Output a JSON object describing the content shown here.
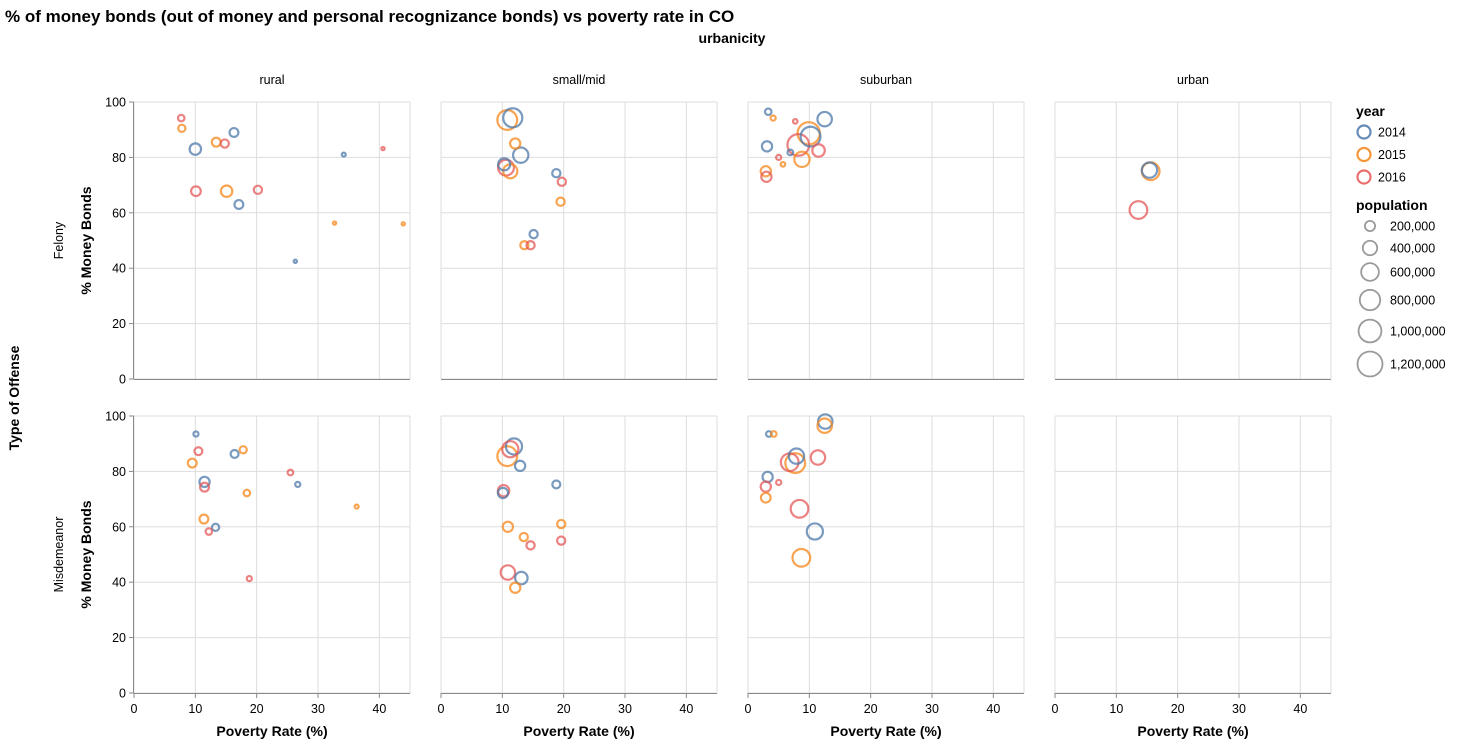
{
  "chart_data": {
    "type": "scatter",
    "title": "% of money bonds (out of money and personal recognizance bonds) vs poverty rate in CO",
    "column_facet_title": "urbanicity",
    "row_facet_title": "Type of Offense",
    "xlabel": "Poverty Rate (%)",
    "ylabel": "% Money Bonds",
    "xlim": [
      0,
      45
    ],
    "ylim": [
      0,
      100
    ],
    "x_ticks": [
      0,
      10,
      20,
      30,
      40
    ],
    "y_ticks": [
      0,
      20,
      40,
      60,
      80,
      100
    ],
    "grid": true,
    "columns": [
      "rural",
      "small/mid",
      "suburban",
      "urban"
    ],
    "rows": [
      "Felony",
      "Misdemeanor"
    ],
    "colors": {
      "2014": "#4c78a8",
      "2015": "#f58518",
      "2016": "#e45756"
    },
    "legend": {
      "position": "right",
      "year_title": "year",
      "years": [
        "2014",
        "2015",
        "2016"
      ],
      "size_title": "population",
      "sizes": [
        {
          "label": "200,000",
          "value": 200000
        },
        {
          "label": "400,000",
          "value": 400000
        },
        {
          "label": "600,000",
          "value": 600000
        },
        {
          "label": "800,000",
          "value": 800000
        },
        {
          "label": "1,000,000",
          "value": 1000000
        },
        {
          "label": "1,200,000",
          "value": 1200000
        }
      ]
    },
    "points": [
      {
        "row": "Felony",
        "col": "rural",
        "year": "2014",
        "x": 10,
        "y": 83,
        "pop": 250000
      },
      {
        "row": "Felony",
        "col": "rural",
        "year": "2014",
        "x": 16.3,
        "y": 89,
        "pop": 150000
      },
      {
        "row": "Felony",
        "col": "rural",
        "year": "2014",
        "x": 17.1,
        "y": 63,
        "pop": 150000
      },
      {
        "row": "Felony",
        "col": "rural",
        "year": "2014",
        "x": 34.2,
        "y": 81,
        "pop": 30000
      },
      {
        "row": "Felony",
        "col": "rural",
        "year": "2014",
        "x": 26.3,
        "y": 42.5,
        "pop": 20000
      },
      {
        "row": "Felony",
        "col": "rural",
        "year": "2015",
        "x": 7.8,
        "y": 90.5,
        "pop": 100000
      },
      {
        "row": "Felony",
        "col": "rural",
        "year": "2015",
        "x": 13.4,
        "y": 85.5,
        "pop": 150000
      },
      {
        "row": "Felony",
        "col": "rural",
        "year": "2015",
        "x": 15.1,
        "y": 67.8,
        "pop": 250000
      },
      {
        "row": "Felony",
        "col": "rural",
        "year": "2015",
        "x": 32.7,
        "y": 56.3,
        "pop": 20000
      },
      {
        "row": "Felony",
        "col": "rural",
        "year": "2015",
        "x": 43.9,
        "y": 56,
        "pop": 15000
      },
      {
        "row": "Felony",
        "col": "rural",
        "year": "2016",
        "x": 7.7,
        "y": 94.2,
        "pop": 80000
      },
      {
        "row": "Felony",
        "col": "rural",
        "year": "2016",
        "x": 14.8,
        "y": 85,
        "pop": 130000
      },
      {
        "row": "Felony",
        "col": "rural",
        "year": "2016",
        "x": 10.1,
        "y": 67.8,
        "pop": 180000
      },
      {
        "row": "Felony",
        "col": "rural",
        "year": "2016",
        "x": 20.2,
        "y": 68.3,
        "pop": 130000
      },
      {
        "row": "Felony",
        "col": "rural",
        "year": "2016",
        "x": 40.6,
        "y": 83.2,
        "pop": 20000
      },
      {
        "row": "Felony",
        "col": "small/mid",
        "year": "2014",
        "x": 11.7,
        "y": 94.3,
        "pop": 700000
      },
      {
        "row": "Felony",
        "col": "small/mid",
        "year": "2014",
        "x": 13,
        "y": 80.8,
        "pop": 450000
      },
      {
        "row": "Felony",
        "col": "small/mid",
        "year": "2014",
        "x": 10.3,
        "y": 77.5,
        "pop": 280000
      },
      {
        "row": "Felony",
        "col": "small/mid",
        "year": "2014",
        "x": 18.8,
        "y": 74.3,
        "pop": 130000
      },
      {
        "row": "Felony",
        "col": "small/mid",
        "year": "2014",
        "x": 15.1,
        "y": 52.3,
        "pop": 130000
      },
      {
        "row": "Felony",
        "col": "small/mid",
        "year": "2015",
        "x": 10.8,
        "y": 93.5,
        "pop": 750000
      },
      {
        "row": "Felony",
        "col": "small/mid",
        "year": "2015",
        "x": 12.1,
        "y": 85,
        "pop": 200000
      },
      {
        "row": "Felony",
        "col": "small/mid",
        "year": "2015",
        "x": 11.3,
        "y": 75,
        "pop": 380000
      },
      {
        "row": "Felony",
        "col": "small/mid",
        "year": "2015",
        "x": 19.5,
        "y": 64,
        "pop": 130000
      },
      {
        "row": "Felony",
        "col": "small/mid",
        "year": "2015",
        "x": 13.6,
        "y": 48.3,
        "pop": 130000
      },
      {
        "row": "Felony",
        "col": "small/mid",
        "year": "2016",
        "x": 10.6,
        "y": 76.3,
        "pop": 480000
      },
      {
        "row": "Felony",
        "col": "small/mid",
        "year": "2016",
        "x": 19.7,
        "y": 71.2,
        "pop": 130000
      },
      {
        "row": "Felony",
        "col": "small/mid",
        "year": "2016",
        "x": 14.6,
        "y": 48.3,
        "pop": 130000
      },
      {
        "row": "Felony",
        "col": "suburban",
        "year": "2014",
        "x": 3.3,
        "y": 96.5,
        "pop": 80000
      },
      {
        "row": "Felony",
        "col": "suburban",
        "year": "2014",
        "x": 12.5,
        "y": 93.8,
        "pop": 400000
      },
      {
        "row": "Felony",
        "col": "suburban",
        "year": "2014",
        "x": 3.1,
        "y": 84,
        "pop": 200000
      },
      {
        "row": "Felony",
        "col": "suburban",
        "year": "2014",
        "x": 10.2,
        "y": 87.5,
        "pop": 750000
      },
      {
        "row": "Felony",
        "col": "suburban",
        "year": "2014",
        "x": 6.9,
        "y": 81.8,
        "pop": 60000
      },
      {
        "row": "Felony",
        "col": "suburban",
        "year": "2015",
        "x": 4.1,
        "y": 94.2,
        "pop": 50000
      },
      {
        "row": "Felony",
        "col": "suburban",
        "year": "2015",
        "x": 9.9,
        "y": 88.7,
        "pop": 950000
      },
      {
        "row": "Felony",
        "col": "suburban",
        "year": "2015",
        "x": 8.8,
        "y": 79.3,
        "pop": 450000
      },
      {
        "row": "Felony",
        "col": "suburban",
        "year": "2015",
        "x": 2.9,
        "y": 75,
        "pop": 200000
      },
      {
        "row": "Felony",
        "col": "suburban",
        "year": "2015",
        "x": 5.7,
        "y": 77.5,
        "pop": 40000
      },
      {
        "row": "Felony",
        "col": "suburban",
        "year": "2016",
        "x": 7.7,
        "y": 93,
        "pop": 40000
      },
      {
        "row": "Felony",
        "col": "suburban",
        "year": "2016",
        "x": 8.2,
        "y": 84.5,
        "pop": 900000
      },
      {
        "row": "Felony",
        "col": "suburban",
        "year": "2016",
        "x": 11.5,
        "y": 82.5,
        "pop": 300000
      },
      {
        "row": "Felony",
        "col": "suburban",
        "year": "2016",
        "x": 5,
        "y": 80,
        "pop": 50000
      },
      {
        "row": "Felony",
        "col": "suburban",
        "year": "2016",
        "x": 3,
        "y": 73,
        "pop": 200000
      },
      {
        "row": "Felony",
        "col": "urban",
        "year": "2014",
        "x": 15.4,
        "y": 75.4,
        "pop": 450000
      },
      {
        "row": "Felony",
        "col": "urban",
        "year": "2015",
        "x": 15.6,
        "y": 75,
        "pop": 600000
      },
      {
        "row": "Felony",
        "col": "urban",
        "year": "2016",
        "x": 13.6,
        "y": 61,
        "pop": 600000
      },
      {
        "row": "Misdemeanor",
        "col": "rural",
        "year": "2014",
        "x": 10.1,
        "y": 93.5,
        "pop": 50000
      },
      {
        "row": "Misdemeanor",
        "col": "rural",
        "year": "2014",
        "x": 16.4,
        "y": 86.3,
        "pop": 120000
      },
      {
        "row": "Misdemeanor",
        "col": "rural",
        "year": "2014",
        "x": 11.5,
        "y": 76.2,
        "pop": 200000
      },
      {
        "row": "Misdemeanor",
        "col": "rural",
        "year": "2014",
        "x": 26.7,
        "y": 75.3,
        "pop": 50000
      },
      {
        "row": "Misdemeanor",
        "col": "rural",
        "year": "2014",
        "x": 13.3,
        "y": 59.8,
        "pop": 100000
      },
      {
        "row": "Misdemeanor",
        "col": "rural",
        "year": "2015",
        "x": 9.5,
        "y": 83,
        "pop": 150000
      },
      {
        "row": "Misdemeanor",
        "col": "rural",
        "year": "2015",
        "x": 17.8,
        "y": 87.8,
        "pop": 100000
      },
      {
        "row": "Misdemeanor",
        "col": "rural",
        "year": "2015",
        "x": 11.4,
        "y": 62.8,
        "pop": 150000
      },
      {
        "row": "Misdemeanor",
        "col": "rural",
        "year": "2015",
        "x": 18.4,
        "y": 72.2,
        "pop": 80000
      },
      {
        "row": "Misdemeanor",
        "col": "rural",
        "year": "2015",
        "x": 36.3,
        "y": 67.3,
        "pop": 30000
      },
      {
        "row": "Misdemeanor",
        "col": "rural",
        "year": "2016",
        "x": 10.5,
        "y": 87.3,
        "pop": 120000
      },
      {
        "row": "Misdemeanor",
        "col": "rural",
        "year": "2016",
        "x": 11.5,
        "y": 74.3,
        "pop": 150000
      },
      {
        "row": "Misdemeanor",
        "col": "rural",
        "year": "2016",
        "x": 25.5,
        "y": 79.6,
        "pop": 60000
      },
      {
        "row": "Misdemeanor",
        "col": "rural",
        "year": "2016",
        "x": 12.2,
        "y": 58.3,
        "pop": 80000
      },
      {
        "row": "Misdemeanor",
        "col": "rural",
        "year": "2016",
        "x": 18.8,
        "y": 41.3,
        "pop": 50000
      },
      {
        "row": "Misdemeanor",
        "col": "small/mid",
        "year": "2014",
        "x": 11.9,
        "y": 89,
        "pop": 500000
      },
      {
        "row": "Misdemeanor",
        "col": "small/mid",
        "year": "2014",
        "x": 12.9,
        "y": 82,
        "pop": 200000
      },
      {
        "row": "Misdemeanor",
        "col": "small/mid",
        "year": "2014",
        "x": 18.8,
        "y": 75.3,
        "pop": 120000
      },
      {
        "row": "Misdemeanor",
        "col": "small/mid",
        "year": "2014",
        "x": 10.1,
        "y": 72.2,
        "pop": 200000
      },
      {
        "row": "Misdemeanor",
        "col": "small/mid",
        "year": "2014",
        "x": 13.1,
        "y": 41.5,
        "pop": 300000
      },
      {
        "row": "Misdemeanor",
        "col": "small/mid",
        "year": "2015",
        "x": 10.8,
        "y": 85.5,
        "pop": 750000
      },
      {
        "row": "Misdemeanor",
        "col": "small/mid",
        "year": "2015",
        "x": 10.9,
        "y": 60,
        "pop": 200000
      },
      {
        "row": "Misdemeanor",
        "col": "small/mid",
        "year": "2015",
        "x": 19.6,
        "y": 61,
        "pop": 130000
      },
      {
        "row": "Misdemeanor",
        "col": "small/mid",
        "year": "2015",
        "x": 13.5,
        "y": 56.3,
        "pop": 130000
      },
      {
        "row": "Misdemeanor",
        "col": "small/mid",
        "year": "2015",
        "x": 12.1,
        "y": 38,
        "pop": 200000
      },
      {
        "row": "Misdemeanor",
        "col": "small/mid",
        "year": "2016",
        "x": 11.3,
        "y": 88,
        "pop": 500000
      },
      {
        "row": "Misdemeanor",
        "col": "small/mid",
        "year": "2016",
        "x": 10.2,
        "y": 73,
        "pop": 250000
      },
      {
        "row": "Misdemeanor",
        "col": "small/mid",
        "year": "2016",
        "x": 19.6,
        "y": 55,
        "pop": 130000
      },
      {
        "row": "Misdemeanor",
        "col": "small/mid",
        "year": "2016",
        "x": 14.6,
        "y": 53.3,
        "pop": 130000
      },
      {
        "row": "Misdemeanor",
        "col": "small/mid",
        "year": "2016",
        "x": 10.9,
        "y": 43.5,
        "pop": 400000
      },
      {
        "row": "Misdemeanor",
        "col": "suburban",
        "year": "2014",
        "x": 3.4,
        "y": 93.5,
        "pop": 60000
      },
      {
        "row": "Misdemeanor",
        "col": "suburban",
        "year": "2014",
        "x": 12.6,
        "y": 98,
        "pop": 400000
      },
      {
        "row": "Misdemeanor",
        "col": "suburban",
        "year": "2014",
        "x": 7.9,
        "y": 85.5,
        "pop": 450000
      },
      {
        "row": "Misdemeanor",
        "col": "suburban",
        "year": "2014",
        "x": 3.2,
        "y": 78,
        "pop": 200000
      },
      {
        "row": "Misdemeanor",
        "col": "suburban",
        "year": "2014",
        "x": 10.9,
        "y": 58.3,
        "pop": 500000
      },
      {
        "row": "Misdemeanor",
        "col": "suburban",
        "year": "2015",
        "x": 4.2,
        "y": 93.5,
        "pop": 60000
      },
      {
        "row": "Misdemeanor",
        "col": "suburban",
        "year": "2015",
        "x": 12.5,
        "y": 96.5,
        "pop": 400000
      },
      {
        "row": "Misdemeanor",
        "col": "suburban",
        "year": "2015",
        "x": 7.7,
        "y": 83,
        "pop": 750000
      },
      {
        "row": "Misdemeanor",
        "col": "suburban",
        "year": "2015",
        "x": 2.9,
        "y": 70.5,
        "pop": 180000
      },
      {
        "row": "Misdemeanor",
        "col": "suburban",
        "year": "2015",
        "x": 8.7,
        "y": 48.8,
        "pop": 600000
      },
      {
        "row": "Misdemeanor",
        "col": "suburban",
        "year": "2016",
        "x": 6.8,
        "y": 83.3,
        "pop": 600000
      },
      {
        "row": "Misdemeanor",
        "col": "suburban",
        "year": "2016",
        "x": 11.4,
        "y": 85,
        "pop": 400000
      },
      {
        "row": "Misdemeanor",
        "col": "suburban",
        "year": "2016",
        "x": 5,
        "y": 76,
        "pop": 50000
      },
      {
        "row": "Misdemeanor",
        "col": "suburban",
        "year": "2016",
        "x": 2.9,
        "y": 74.5,
        "pop": 200000
      },
      {
        "row": "Misdemeanor",
        "col": "suburban",
        "year": "2016",
        "x": 8.4,
        "y": 66.5,
        "pop": 600000
      }
    ]
  }
}
